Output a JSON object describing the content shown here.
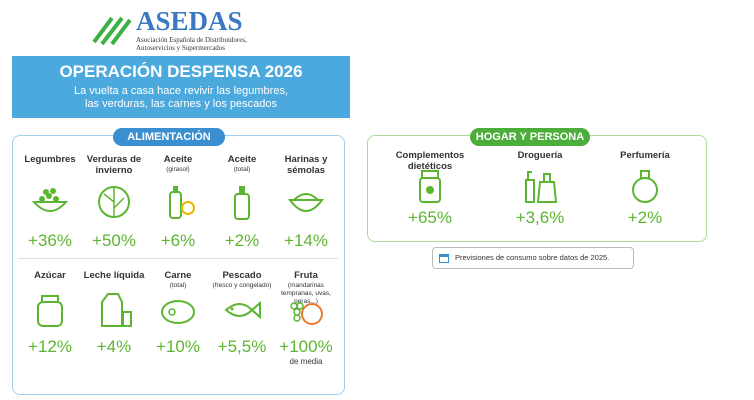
{
  "logo": {
    "name": "ASEDAS",
    "line1": "Asociación Española de Distribuidores,",
    "line2": "Autoservicios y Supermercados"
  },
  "banner": {
    "title": "OPERACIÓN DESPENSA 2026",
    "line1": "La vuelta a casa hace revivir las legumbres,",
    "line2": "las verduras, las carnes y los pescados"
  },
  "alimentacion": {
    "title": "ALIMENTACIÓN",
    "items": [
      {
        "name": "Legumbres",
        "value": "+36%"
      },
      {
        "name": "Verduras de invierno",
        "value": "+50%"
      },
      {
        "name": "Aceite",
        "note": "(girasol)",
        "value": "+6%"
      },
      {
        "name": "Aceite",
        "note": "(total)",
        "value": "+2%"
      },
      {
        "name": "Harinas y sémolas",
        "value": "+14%"
      },
      {
        "name": "Azúcar",
        "value": "+12%"
      },
      {
        "name": "Leche líquida",
        "value": "+4%"
      },
      {
        "name": "Carne",
        "note": "(total)",
        "value": "+10%"
      },
      {
        "name": "Pescado",
        "note": "(fresco y congelado)",
        "value": "+5,5%"
      },
      {
        "name": "Fruta",
        "note": "(mandarinas tempranas, uvas, peras...)",
        "value": "+100%",
        "suffix": "de media"
      }
    ]
  },
  "hogar": {
    "title": "HOGAR Y PERSONA",
    "items": [
      {
        "name": "Complementos dietéticos",
        "value": "+65%"
      },
      {
        "name": "Droguería",
        "value": "+3,6%"
      },
      {
        "name": "Perfumería",
        "value": "+2%"
      }
    ]
  },
  "note": "Previsiones de consumo sobre datos de 2025."
}
